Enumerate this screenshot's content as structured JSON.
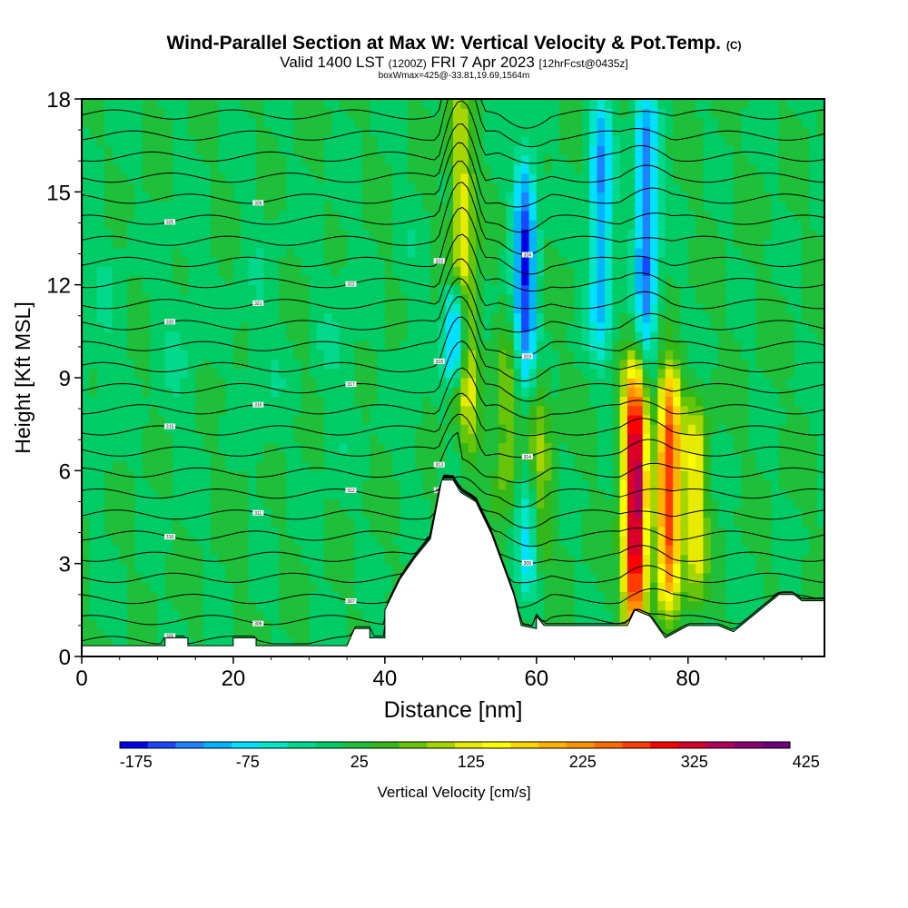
{
  "title": {
    "main": "Wind-Parallel Section at Max W: Vertical Velocity & Pot.Temp.",
    "copyright": "(C)",
    "valid_prefix": "Valid 1400 LST",
    "utc": "(1200Z)",
    "valid_date": "FRI 7 Apr 2023",
    "forecast": "[12hrFcst@0435z]",
    "box_info": "boxWmax=425@-33.81,19.69,1564m"
  },
  "chart_data": {
    "type": "heatmap",
    "xlabel": "Distance [nm]",
    "ylabel": "Height [Kft MSL]",
    "xlim": [
      0,
      98
    ],
    "ylim": [
      0,
      18
    ],
    "x_ticks": [
      0,
      20,
      40,
      60,
      80
    ],
    "y_ticks": [
      0,
      3,
      6,
      9,
      12,
      15,
      18
    ],
    "colorbar": {
      "label": "Vertical Velocity [cm/s]",
      "tick_labels": [
        "-175",
        "-75",
        "25",
        "125",
        "225",
        "325",
        "425"
      ],
      "colors": [
        "#0000e6",
        "#1a46ff",
        "#1e82ff",
        "#00b4ff",
        "#00e0ff",
        "#00e6c8",
        "#00d98c",
        "#00cc66",
        "#1fbf3a",
        "#33b81a",
        "#66c40a",
        "#a6d600",
        "#e6eb00",
        "#ffff00",
        "#ffd400",
        "#ffb300",
        "#ff9000",
        "#ff6a00",
        "#ff3c00",
        "#ff0000",
        "#d9002a",
        "#b3005a",
        "#8c0070",
        "#6e0078"
      ]
    },
    "terrain_profile": [
      [
        0,
        0.35
      ],
      [
        11,
        0.35
      ],
      [
        11,
        0.6
      ],
      [
        14,
        0.6
      ],
      [
        14,
        0.35
      ],
      [
        20,
        0.35
      ],
      [
        20,
        0.6
      ],
      [
        23,
        0.6
      ],
      [
        23,
        0.35
      ],
      [
        35,
        0.35
      ],
      [
        36,
        0.9
      ],
      [
        38,
        0.9
      ],
      [
        38,
        0.6
      ],
      [
        40,
        0.6
      ],
      [
        40,
        1.5
      ],
      [
        42,
        2.5
      ],
      [
        44,
        3.2
      ],
      [
        46,
        3.8
      ],
      [
        47.5,
        5.7
      ],
      [
        49,
        5.7
      ],
      [
        50,
        5.3
      ],
      [
        52,
        5.0
      ],
      [
        54,
        4.0
      ],
      [
        55.5,
        3.0
      ],
      [
        57,
        2.0
      ],
      [
        58,
        1.0
      ],
      [
        60,
        0.9
      ],
      [
        60,
        1.3
      ],
      [
        61,
        1.0
      ],
      [
        72,
        1.0
      ],
      [
        73,
        1.5
      ],
      [
        75,
        1.3
      ],
      [
        77,
        0.6
      ],
      [
        80,
        1.0
      ],
      [
        84,
        1.0
      ],
      [
        86,
        0.8
      ],
      [
        90,
        1.6
      ],
      [
        92,
        2.0
      ],
      [
        94,
        2.0
      ],
      [
        95,
        1.8
      ],
      [
        98,
        1.8
      ]
    ],
    "w_features": [
      {
        "x": 50.5,
        "z0": 7,
        "z1": 18,
        "w": 150
      },
      {
        "x": 49.5,
        "z0": 9,
        "z1": 12,
        "w": -125
      },
      {
        "x": 58.5,
        "z0": 9,
        "z1": 16,
        "w": -140
      },
      {
        "x": 56,
        "z0": 5,
        "z1": 10,
        "w": 100
      },
      {
        "x": 60.5,
        "z0": 3,
        "z1": 9,
        "w": 100
      },
      {
        "x": 59,
        "z0": 2,
        "z1": 6,
        "w": -60
      },
      {
        "x": 73,
        "z0": 1,
        "z1": 9,
        "w": 380
      },
      {
        "x": 77.5,
        "z0": 2,
        "z1": 9,
        "w": 300
      },
      {
        "x": 81,
        "z0": 2,
        "z1": 8,
        "w": 150
      },
      {
        "x": 74.5,
        "z0": 10,
        "z1": 18,
        "w": -125
      },
      {
        "x": 68.5,
        "z0": 10,
        "z1": 18,
        "w": -100
      },
      {
        "x": 21,
        "z0": 3,
        "z1": 7,
        "w": 40
      }
    ],
    "theta_contour_labels": [
      "305",
      "306",
      "307",
      "308",
      "309",
      "310",
      "311",
      "312",
      "313",
      "314",
      "315",
      "316",
      "317",
      "318",
      "319",
      "320",
      "321",
      "322",
      "323",
      "324",
      "325",
      "326"
    ]
  }
}
